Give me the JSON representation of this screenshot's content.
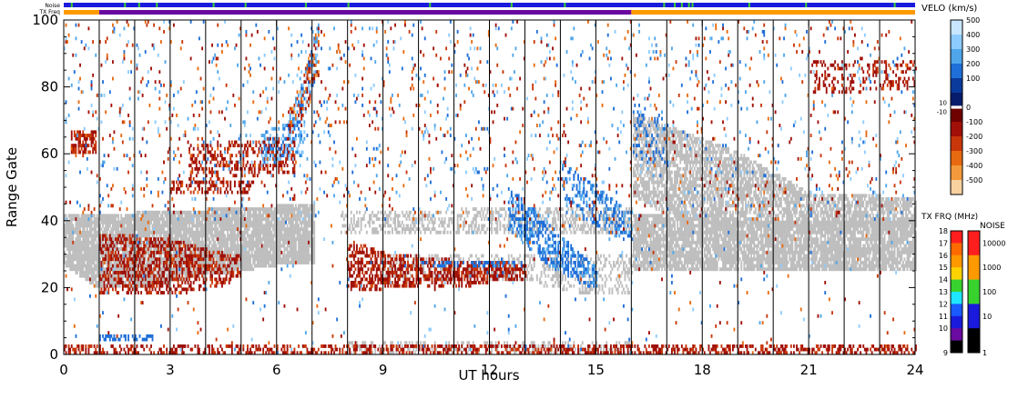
{
  "chart_data": {
    "type": "heatmap",
    "title": "",
    "xlabel": "UT hours",
    "ylabel": "Range Gate",
    "xlim": [
      0,
      24
    ],
    "ylim": [
      0,
      100
    ],
    "x_ticks": [
      "0",
      "3",
      "6",
      "9",
      "12",
      "15",
      "18",
      "21",
      "24"
    ],
    "y_ticks": [
      "0",
      "20",
      "40",
      "60",
      "80",
      "100"
    ],
    "scan_boundaries_ut": [
      1,
      2,
      3,
      4,
      5,
      6,
      7,
      8,
      9,
      10,
      11,
      12,
      13,
      14,
      15,
      16,
      17,
      18,
      19,
      20,
      21,
      22,
      23
    ],
    "top_strips": {
      "noise_label": "Noise",
      "txfreq_label": "TX Freq",
      "noise_color": "#1a1adc",
      "noise_ticks_ut": [
        0.2,
        1.7,
        2.1,
        2.6,
        4.2,
        5.1,
        6.8,
        8.0,
        10.3,
        12.6,
        14.1,
        16.9,
        17.2,
        17.4,
        17.6,
        17.7,
        19.3,
        20.9,
        23.4
      ],
      "txfreq_segments": [
        {
          "from": 0,
          "to": 1,
          "color": "#ff9900"
        },
        {
          "from": 1,
          "to": 16,
          "color": "#6a0aa0"
        },
        {
          "from": 16,
          "to": 24,
          "color": "#ff9900"
        }
      ]
    },
    "ground_scatter_color": "#bebebe",
    "velocity_colorbar": {
      "label": "VELO (km/s)",
      "ticks": [
        "500",
        "400",
        "300",
        "200",
        "100",
        "0",
        "-100",
        "-200",
        "-300",
        "-400",
        "-500"
      ],
      "inner_labels": [
        "10",
        "-10"
      ],
      "colors": [
        "#c8e6ff",
        "#8ccbff",
        "#4fa6ea",
        "#1f6fd8",
        "#0a3a9c",
        "#071c6c",
        "#6e0000",
        "#a01008",
        "#c8360a",
        "#e86a10",
        "#f49a3c",
        "#fad2a0"
      ]
    },
    "txfreq_colorbar": {
      "label": "TX FRQ (MHz)",
      "ticks": [
        "18",
        "17",
        "16",
        "15",
        "14",
        "13",
        "12",
        "11",
        "10",
        "9"
      ],
      "colors": [
        "#ff1e1e",
        "#ff6a00",
        "#ff9900",
        "#ffd200",
        "#38d22e",
        "#1ee6ff",
        "#1a5aff",
        "#1a1adc",
        "#6a0aa0",
        "#000000"
      ]
    },
    "noise_colorbar": {
      "label": "NOISE",
      "ticks": [
        "10000",
        "1000",
        "100",
        "10",
        "1"
      ],
      "colors": [
        "#ff1e1e",
        "#ff9900",
        "#38d22e",
        "#1a1adc",
        "#000000"
      ]
    },
    "features": [
      {
        "kind": "ground_scatter",
        "band": [
          [
            0,
            27,
            42
          ],
          [
            1,
            20,
            42
          ],
          [
            2,
            20,
            42
          ],
          [
            4,
            24,
            43
          ],
          [
            6,
            27,
            44
          ],
          [
            7.05,
            28,
            45
          ]
        ],
        "density": 0.9
      },
      {
        "kind": "ground_scatter",
        "band": [
          [
            16,
            48,
            72
          ],
          [
            17,
            42,
            68
          ],
          [
            19,
            38,
            60
          ],
          [
            21,
            38,
            48
          ],
          [
            23,
            38,
            47
          ],
          [
            24,
            38,
            46
          ]
        ],
        "density": 0.7
      },
      {
        "kind": "ground_scatter",
        "band": [
          [
            16,
            26,
            42
          ],
          [
            18,
            25,
            40
          ],
          [
            21,
            25,
            40
          ],
          [
            24,
            26,
            40
          ]
        ],
        "density": 0.85
      },
      {
        "kind": "ground_scatter",
        "band": [
          [
            7.8,
            36,
            42
          ],
          [
            11,
            36,
            43
          ],
          [
            16,
            36,
            44
          ]
        ],
        "density": 0.45
      },
      {
        "kind": "ground_scatter",
        "band": [
          [
            9,
            22,
            30
          ],
          [
            13,
            22,
            30
          ],
          [
            15,
            18,
            30
          ],
          [
            16,
            18,
            30
          ]
        ],
        "density": 0.3
      },
      {
        "kind": "ground_scatter",
        "band": [
          [
            8,
            0,
            4
          ],
          [
            16,
            0,
            4
          ]
        ],
        "density": 0.35
      },
      {
        "kind": "negative_velocity",
        "band": [
          [
            1,
            18,
            36
          ],
          [
            3,
            18,
            34
          ],
          [
            4.5,
            21,
            30
          ],
          [
            5,
            24,
            30
          ]
        ],
        "density": 0.45,
        "vmin": -250,
        "vmax": -100
      },
      {
        "kind": "negative_velocity",
        "band": [
          [
            8,
            19,
            34
          ],
          [
            9,
            20,
            30
          ],
          [
            11,
            20,
            28
          ],
          [
            12,
            22,
            28
          ],
          [
            13,
            22,
            26
          ]
        ],
        "density": 0.55,
        "vmin": -250,
        "vmax": -100
      },
      {
        "kind": "negative_velocity",
        "band": [
          [
            3,
            48,
            52
          ],
          [
            5.3,
            48,
            52
          ]
        ],
        "density": 0.45,
        "vmin": -250,
        "vmax": -100
      },
      {
        "kind": "negative_velocity",
        "band": [
          [
            3.5,
            52,
            62
          ],
          [
            6.5,
            55,
            65
          ]
        ],
        "density": 0.35,
        "vmin": -250,
        "vmax": -100
      },
      {
        "kind": "negative_velocity",
        "band": [
          [
            0,
            0,
            3
          ],
          [
            24,
            0,
            3
          ]
        ],
        "density": 0.45,
        "vmin": -250,
        "vmax": -100
      },
      {
        "kind": "negative_velocity",
        "band": [
          [
            0.2,
            60,
            67
          ],
          [
            0.9,
            60,
            67
          ]
        ],
        "density": 0.6,
        "vmin": -300,
        "vmax": -100
      },
      {
        "kind": "negative_velocity",
        "band": [
          [
            21,
            78,
            88
          ],
          [
            24,
            80,
            88
          ]
        ],
        "density": 0.25,
        "vmin": -250,
        "vmax": -100
      },
      {
        "kind": "positive_velocity",
        "band": [
          [
            12.5,
            38,
            50
          ],
          [
            13.5,
            28,
            40
          ],
          [
            14.5,
            22,
            30
          ],
          [
            15,
            20,
            26
          ]
        ],
        "density": 0.5,
        "vmin": 100,
        "vmax": 250
      },
      {
        "kind": "positive_velocity",
        "band": [
          [
            14,
            48,
            58
          ],
          [
            15,
            38,
            50
          ],
          [
            16,
            34,
            42
          ]
        ],
        "density": 0.35,
        "vmin": 100,
        "vmax": 250
      },
      {
        "kind": "positive_velocity",
        "band": [
          [
            10,
            26,
            28
          ],
          [
            13,
            26,
            28
          ]
        ],
        "density": 0.4,
        "vmin": 100,
        "vmax": 200
      },
      {
        "kind": "positive_velocity",
        "band": [
          [
            5.5,
            56,
            66
          ],
          [
            6.8,
            60,
            70
          ]
        ],
        "density": 0.35,
        "vmin": 100,
        "vmax": 400
      },
      {
        "kind": "positive_velocity",
        "band": [
          [
            1,
            4,
            6
          ],
          [
            2.5,
            4,
            6
          ]
        ],
        "density": 0.5,
        "vmin": 100,
        "vmax": 150
      },
      {
        "kind": "positive_velocity",
        "band": [
          [
            16,
            60,
            75
          ],
          [
            17,
            55,
            70
          ]
        ],
        "density": 0.15,
        "vmin": 100,
        "vmax": 200
      },
      {
        "kind": "mixed_velocity",
        "band": [
          [
            6.3,
            65,
            72
          ],
          [
            6.8,
            72,
            85
          ],
          [
            7.2,
            85,
            100
          ]
        ],
        "density": 0.55,
        "vmin": -450,
        "vmax": 450
      },
      {
        "kind": "mixed_velocity",
        "band": [
          [
            0,
            40,
            100
          ],
          [
            24,
            40,
            100
          ]
        ],
        "density": 0.04,
        "vmin": -400,
        "vmax": 400
      },
      {
        "kind": "mixed_velocity",
        "band": [
          [
            0,
            0,
            100
          ],
          [
            24,
            0,
            100
          ]
        ],
        "density": 0.015,
        "vmin": -400,
        "vmax": 400
      }
    ]
  }
}
